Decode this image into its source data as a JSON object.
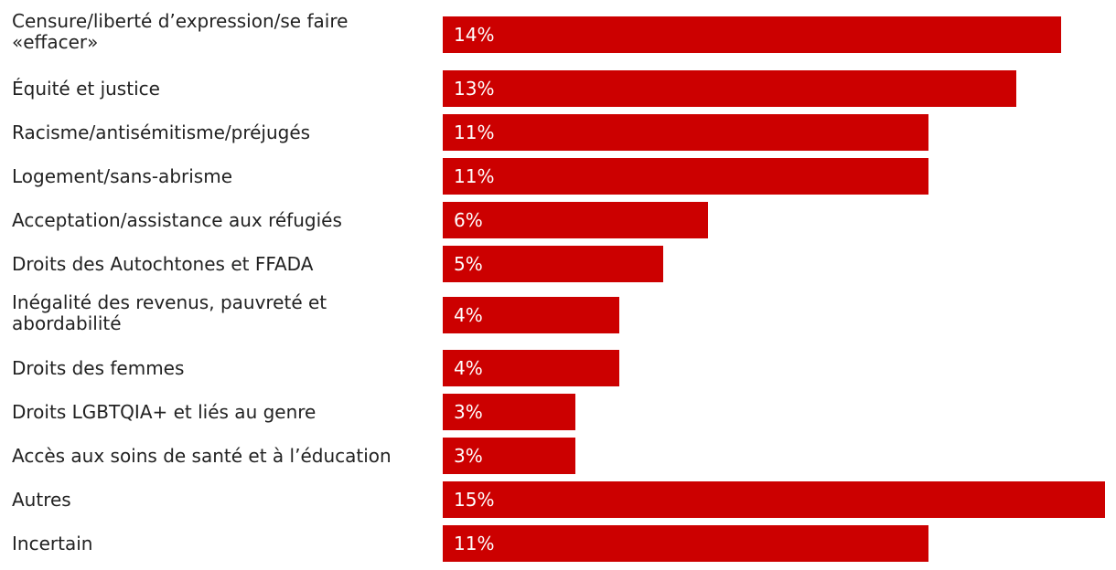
{
  "chart_data": {
    "type": "bar",
    "orientation": "horizontal",
    "color": "#cc0000",
    "categories": [
      "Censure/liberté d’expression/se faire\n«effacer»",
      "Équité et justice",
      "Racisme/antisémitisme/préjugés",
      "Logement/sans-abrisme",
      "Acceptation/assistance aux réfugiés",
      "Droits des Autochtones et FFADA",
      "Inégalité des revenus, pauvreté et\nabordabilité",
      "Droits des femmes",
      "Droits LGBTQIA+ et liés au genre",
      "Accès aux soins de santé et à l’éducation",
      "Autres",
      "Incertain"
    ],
    "values": [
      14,
      13,
      11,
      11,
      6,
      5,
      4,
      4,
      3,
      3,
      15,
      11
    ],
    "value_labels": [
      "14%",
      "13%",
      "11%",
      "11%",
      "6%",
      "5%",
      "4%",
      "4%",
      "3%",
      "3%",
      "15%",
      "11%"
    ],
    "xlim": [
      0,
      15
    ],
    "grid": false
  }
}
